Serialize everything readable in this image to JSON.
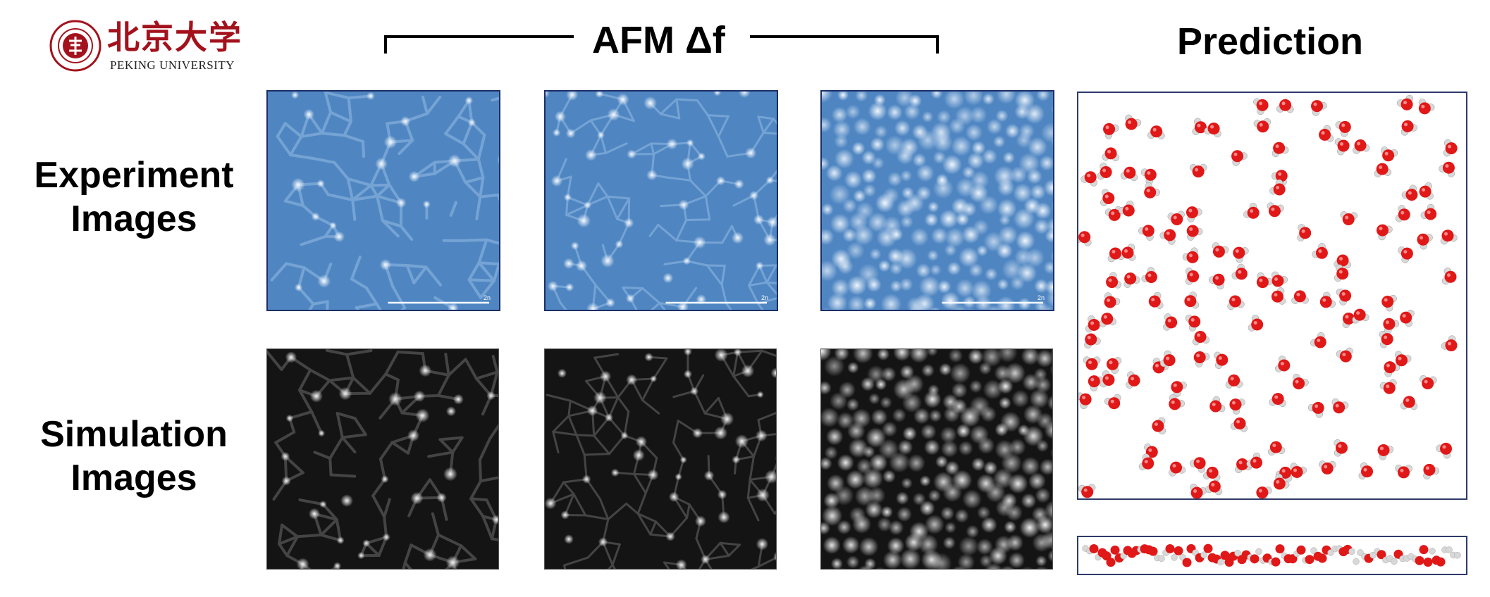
{
  "logo": {
    "name_cn": "北京大学",
    "name_en": "PEKING UNIVERSITY",
    "seal_text": "PEKING UNIVERSITY 1898",
    "color": "#a3121c"
  },
  "header": {
    "afm_title": "AFM Δf",
    "prediction_title": "Prediction"
  },
  "rows": {
    "experiment": {
      "line1": "Experiment",
      "line2": "Images"
    },
    "simulation": {
      "line1": "Simulation",
      "line2": "Images"
    }
  },
  "panels": {
    "experiment": [
      {
        "style": "cells",
        "scale_label": "2n"
      },
      {
        "style": "mixed",
        "scale_label": "2n"
      },
      {
        "style": "dots",
        "scale_label": "2n"
      }
    ],
    "simulation": [
      {
        "style": "cells"
      },
      {
        "style": "mixed"
      },
      {
        "style": "dots"
      }
    ]
  },
  "colors": {
    "afm_blue": "#5c8fc7",
    "afm_light": "#dbe9f7",
    "oxygen": "#e01818",
    "hydrogen": "#d8d8d8",
    "frame": "#1c2f66"
  }
}
